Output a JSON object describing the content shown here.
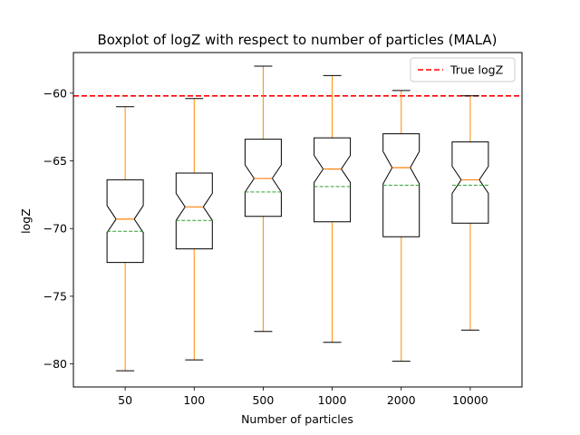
{
  "chart_data": {
    "type": "boxplot",
    "title": "Boxplot of logZ with respect to number of particles (MALA)",
    "xlabel": "Number of particles",
    "ylabel": "logZ",
    "ylim": [
      -81.7,
      -57.0
    ],
    "yticks": [
      -60,
      -65,
      -70,
      -75,
      -80
    ],
    "ytick_labels": [
      "−60",
      "−65",
      "−70",
      "−75",
      "−80"
    ],
    "categories": [
      "50",
      "100",
      "500",
      "1000",
      "2000",
      "10000"
    ],
    "boxes": [
      {
        "whislo": -80.5,
        "q1": -72.5,
        "med": -69.3,
        "q3": -66.4,
        "whishi": -61.0,
        "mean": -70.2,
        "notch_lo": -70.3,
        "notch_hi": -68.3
      },
      {
        "whislo": -79.7,
        "q1": -71.5,
        "med": -68.4,
        "q3": -65.9,
        "whishi": -60.4,
        "mean": -69.4,
        "notch_lo": -69.4,
        "notch_hi": -67.4
      },
      {
        "whislo": -77.6,
        "q1": -69.1,
        "med": -66.3,
        "q3": -63.4,
        "whishi": -58.0,
        "mean": -67.3,
        "notch_lo": -67.3,
        "notch_hi": -65.3
      },
      {
        "whislo": -78.4,
        "q1": -69.5,
        "med": -65.6,
        "q3": -63.3,
        "whishi": -58.7,
        "mean": -66.9,
        "notch_lo": -66.6,
        "notch_hi": -64.6
      },
      {
        "whislo": -79.8,
        "q1": -70.6,
        "med": -65.5,
        "q3": -63.0,
        "whishi": -59.8,
        "mean": -66.8,
        "notch_lo": -66.7,
        "notch_hi": -64.3
      },
      {
        "whislo": -77.5,
        "q1": -69.6,
        "med": -66.4,
        "q3": -63.6,
        "whishi": -60.2,
        "mean": -66.8,
        "notch_lo": -67.4,
        "notch_hi": -65.4
      }
    ],
    "reference_line": {
      "value": -60.2,
      "label": "True logZ",
      "color": "#ff0000",
      "style": "dashed"
    },
    "legend": {
      "position": "top-right",
      "entries": [
        "True logZ"
      ]
    },
    "grid": false,
    "colors": {
      "box": "#000000",
      "whisker": "#ff8c00",
      "median": "#ff7f0e",
      "mean": "#2ca02c",
      "cap": "#000000",
      "reference": "#ff0000"
    }
  }
}
